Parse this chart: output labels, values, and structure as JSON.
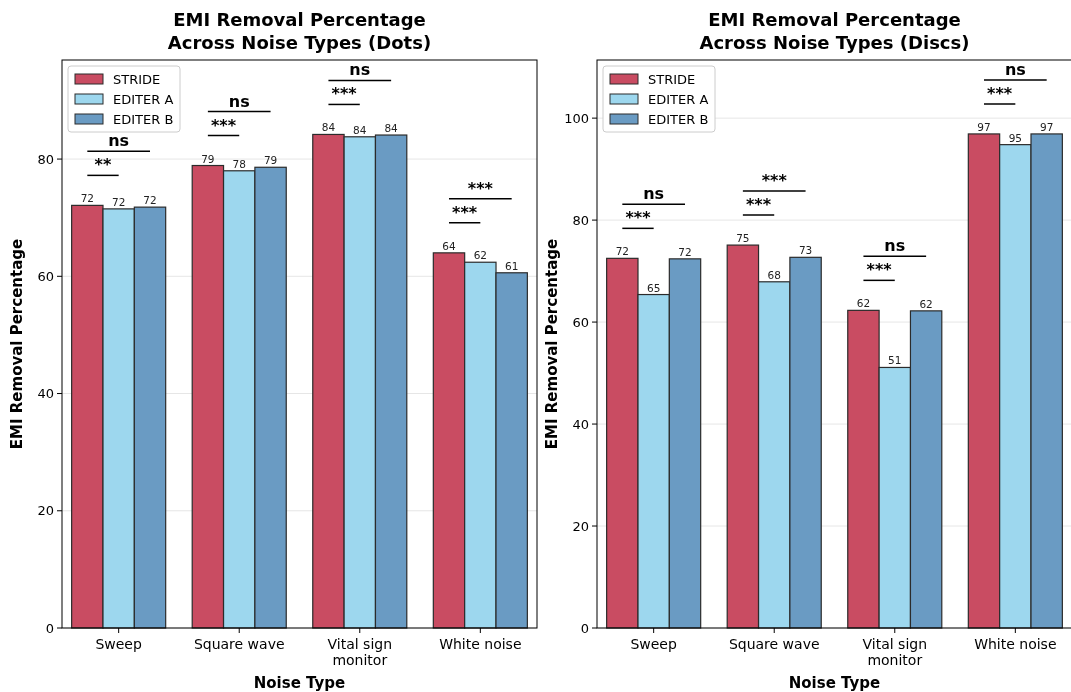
{
  "chart_data": [
    {
      "type": "bar",
      "title": "EMI Removal Percentage\nAcross Noise Types (Dots)",
      "xlabel": "Noise Type",
      "ylabel": "EMI Removal Percentage",
      "categories": [
        "Sweep",
        "Square wave",
        "Vital sign monitor",
        "White noise"
      ],
      "series": [
        {
          "name": "STRIDE",
          "color": "#c94c62",
          "values": [
            72.1,
            78.9,
            84.2,
            64.0
          ],
          "value_labels": [
            "72",
            "79",
            "84",
            "64"
          ]
        },
        {
          "name": "EDITER A",
          "color": "#9dd7ee",
          "values": [
            71.5,
            78.0,
            83.8,
            62.4
          ],
          "value_labels": [
            "72",
            "78",
            "84",
            "62"
          ]
        },
        {
          "name": "EDITER B",
          "color": "#6a9bc3",
          "values": [
            71.8,
            78.6,
            84.1,
            60.6
          ],
          "value_labels": [
            "72",
            "79",
            "84",
            "61"
          ]
        }
      ],
      "ylim": [
        0,
        96.9
      ],
      "yticks": [
        0,
        20,
        40,
        60,
        80
      ],
      "grid": "y",
      "legend": "top left",
      "annotations": [
        "**",
        "ns",
        "***",
        "ns",
        "***",
        "ns",
        "***",
        "***"
      ]
    },
    {
      "type": "bar",
      "title": "EMI Removal Percentage\nAcross Noise Types (Discs)",
      "xlabel": "Noise Type",
      "ylabel": "EMI Removal Percentage",
      "categories": [
        "Sweep",
        "Square wave",
        "Vital sign monitor",
        "White noise"
      ],
      "series": [
        {
          "name": "STRIDE",
          "color": "#c94c62",
          "values": [
            72.5,
            75.1,
            62.3,
            96.9
          ],
          "value_labels": [
            "72",
            "75",
            "62",
            "97"
          ]
        },
        {
          "name": "EDITER A",
          "color": "#9dd7ee",
          "values": [
            65.4,
            67.9,
            51.1,
            94.8
          ],
          "value_labels": [
            "65",
            "68",
            "51",
            "95"
          ]
        },
        {
          "name": "EDITER B",
          "color": "#6a9bc3",
          "values": [
            72.4,
            72.7,
            62.2,
            96.9
          ],
          "value_labels": [
            "72",
            "73",
            "62",
            "97"
          ]
        }
      ],
      "ylim": [
        0,
        111.4
      ],
      "yticks": [
        0,
        20,
        40,
        60,
        80,
        100
      ],
      "grid": "y",
      "legend": "top left",
      "annotations": [
        "***",
        "ns",
        "***",
        "***",
        "***",
        "ns",
        "***",
        "ns"
      ]
    }
  ]
}
